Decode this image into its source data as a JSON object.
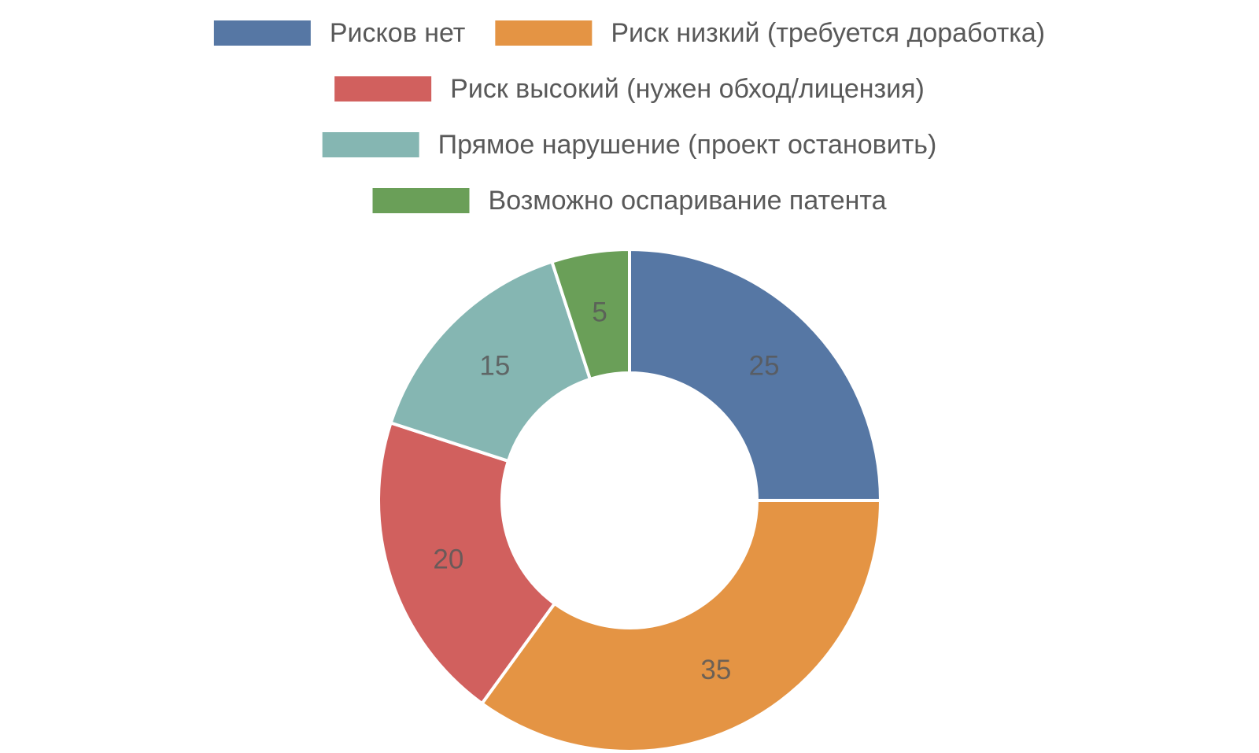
{
  "chart_data": {
    "type": "pie",
    "variant": "donut",
    "title": "",
    "categories": [
      "Рисков нет",
      "Риск низкий (требуется доработка)",
      "Риск высокий (нужен обход/лицензия)",
      "Прямое нарушение (проект остановить)",
      "Возможно оспаривание патента"
    ],
    "values": [
      25,
      35,
      20,
      15,
      5
    ],
    "colors": [
      "#5677a4",
      "#e49444",
      "#d1605e",
      "#85b6b2",
      "#6a9f58"
    ],
    "start_angle_deg": 0,
    "direction": "clockwise",
    "legend_position": "top",
    "data_labels": true
  }
}
